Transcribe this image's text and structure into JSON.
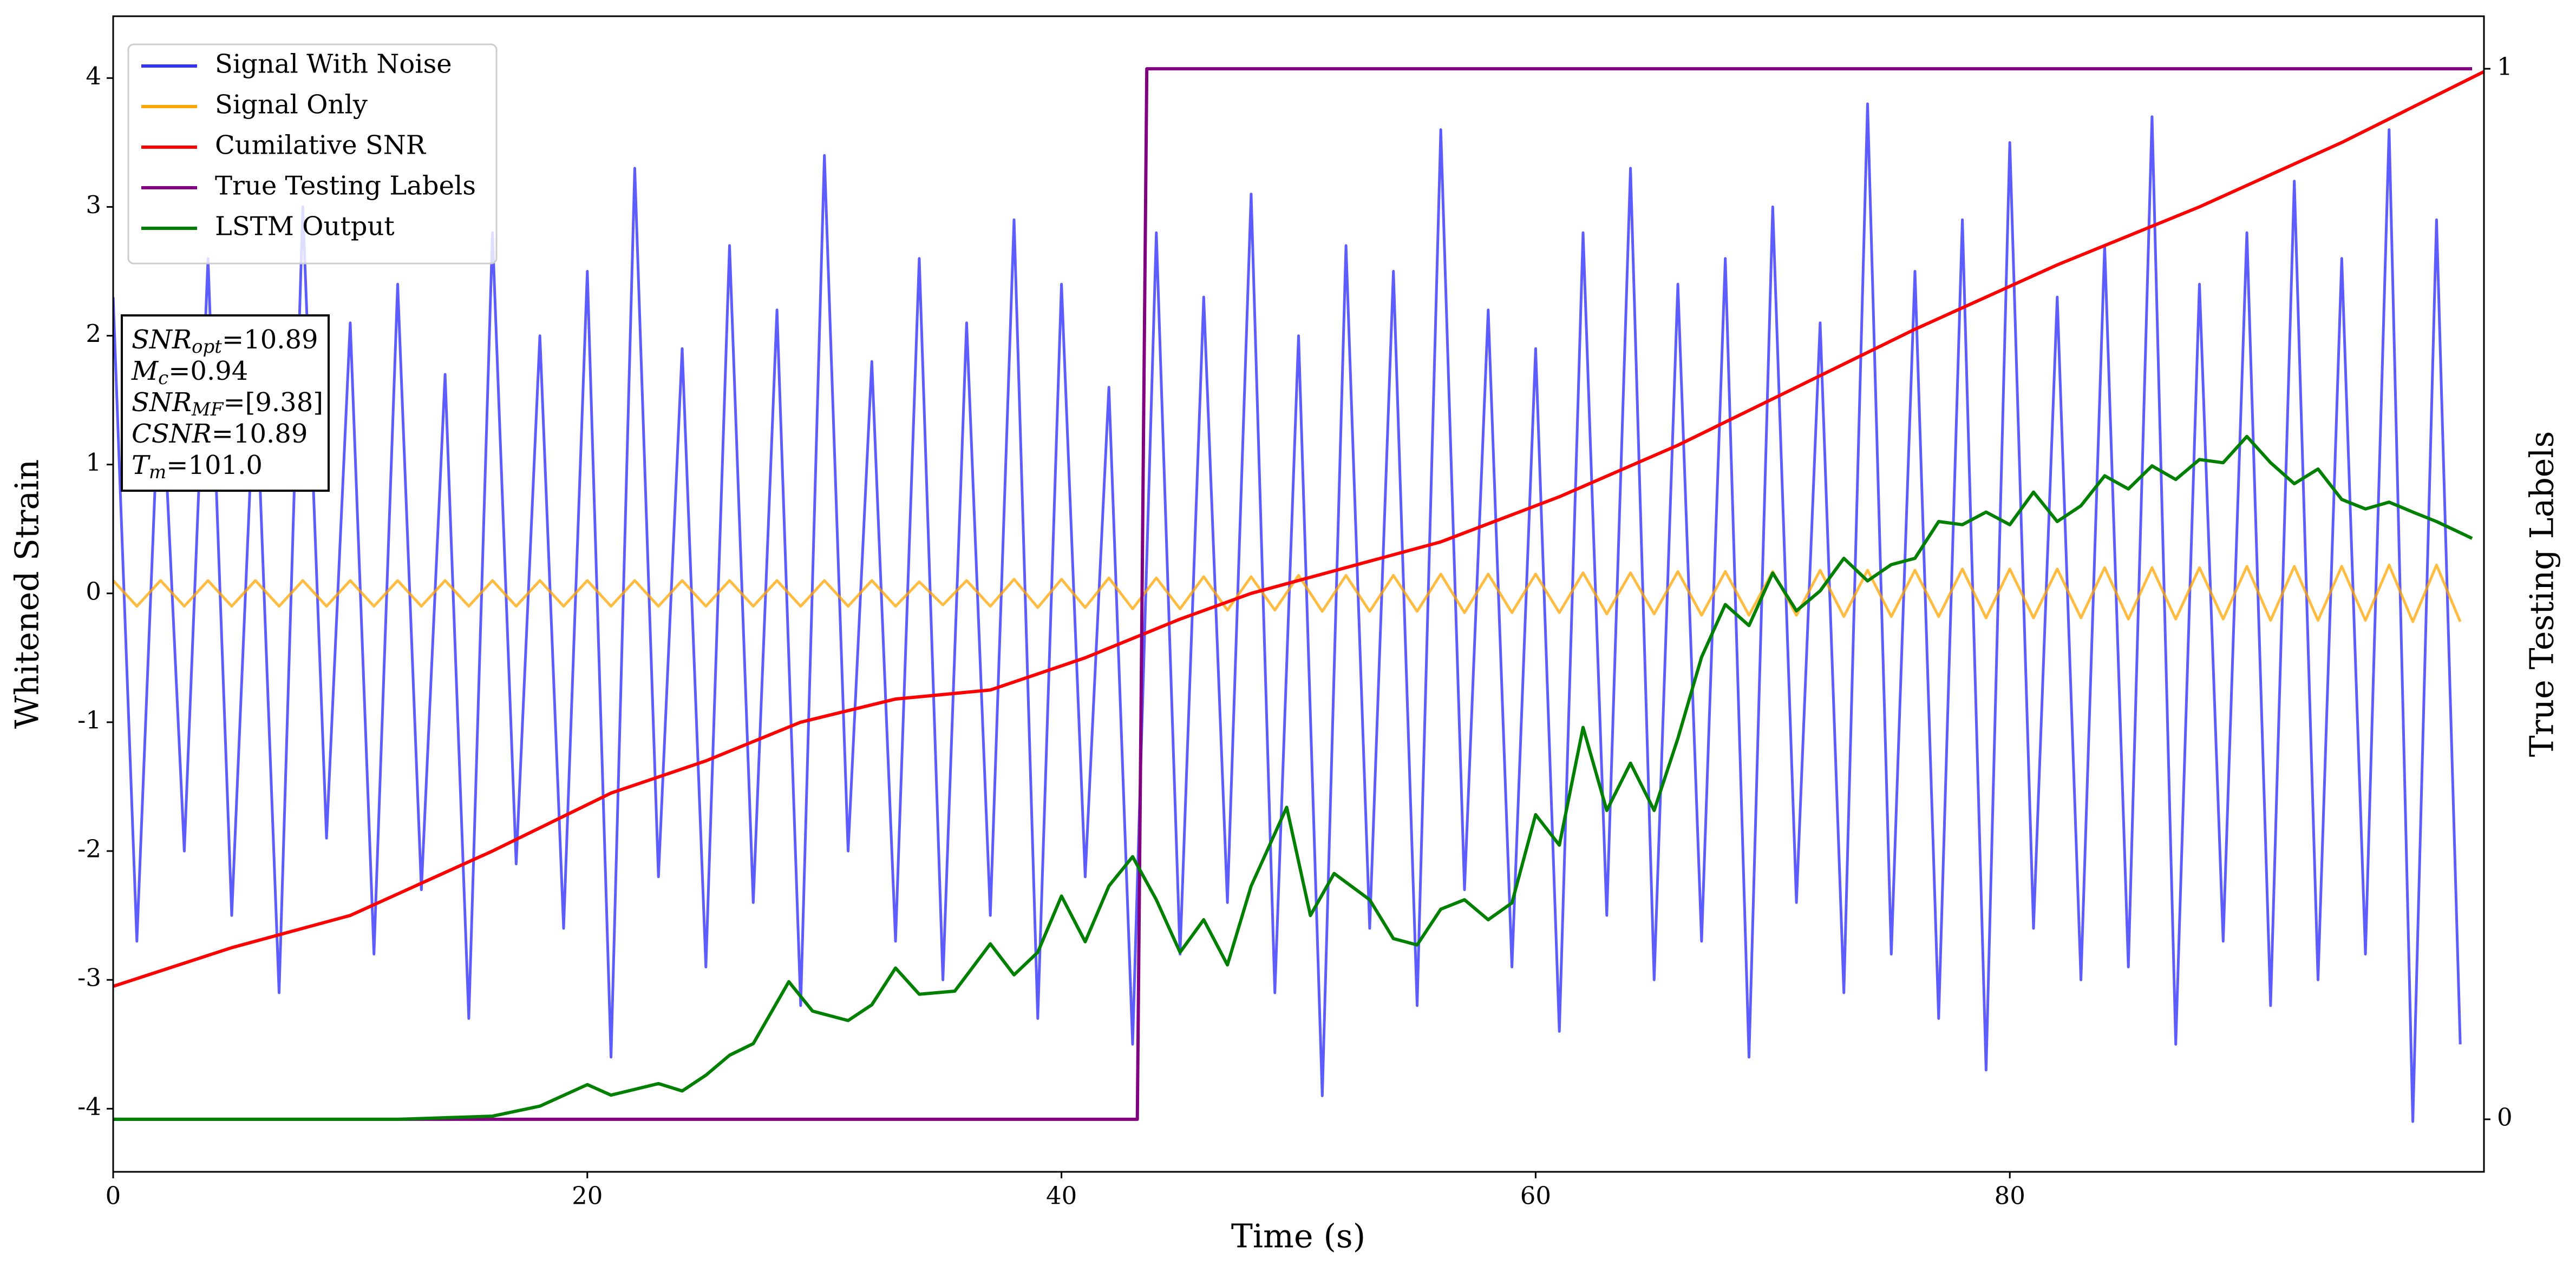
{
  "chart_data": {
    "type": "line",
    "xlabel": "Time (s)",
    "ylabel": "Whitened Strain",
    "y2label": "True Testing Labels",
    "xlim": [
      0,
      100
    ],
    "xticks": [
      0,
      20,
      40,
      60,
      80
    ],
    "ylim": [
      -4.49,
      4.48
    ],
    "yticks": [
      -4,
      -3,
      -2,
      -1,
      0,
      1,
      2,
      3,
      4
    ],
    "y2lim": [
      -0.05,
      1.05
    ],
    "y2ticks": [
      0,
      1
    ],
    "legend": "upper left",
    "x": [
      0,
      1,
      2,
      3,
      4,
      5,
      6,
      7,
      8,
      9,
      10,
      11,
      12,
      13,
      14,
      15,
      16,
      17,
      18,
      19,
      20,
      21,
      22,
      23,
      24,
      25,
      26,
      27,
      28,
      29,
      30,
      31,
      32,
      33,
      34,
      35,
      36,
      37,
      38,
      39,
      40,
      41,
      42,
      43,
      44,
      45,
      46,
      47,
      48,
      49,
      50,
      51,
      52,
      53,
      54,
      55,
      56,
      57,
      58,
      59,
      60,
      61,
      62,
      63,
      64,
      65,
      66,
      67,
      68,
      69,
      70,
      71,
      72,
      73,
      74,
      75,
      76,
      77,
      78,
      79,
      80,
      81,
      82,
      83,
      84,
      85,
      86,
      87,
      88,
      89,
      90,
      91,
      92,
      93,
      94,
      95,
      96,
      97,
      98,
      99
    ],
    "series": [
      {
        "name": "Signal With Noise",
        "color": "#3333ff",
        "values": [
          2.3,
          -2.7,
          1.9,
          -2.0,
          2.6,
          -2.5,
          1.8,
          -3.1,
          3.0,
          -1.9,
          2.1,
          -2.8,
          2.4,
          -2.3,
          1.7,
          -3.3,
          2.8,
          -2.1,
          2.0,
          -2.6,
          2.5,
          -3.6,
          3.3,
          -2.2,
          1.9,
          -2.9,
          2.7,
          -2.4,
          2.2,
          -3.2,
          3.4,
          -2.0,
          1.8,
          -2.7,
          2.6,
          -3.0,
          2.1,
          -2.5,
          2.9,
          -3.3,
          2.4,
          -2.2,
          1.6,
          -3.5,
          2.8,
          -2.8,
          2.3,
          -2.4,
          3.1,
          -3.1,
          2.0,
          -3.9,
          2.7,
          -2.6,
          2.5,
          -3.2,
          3.6,
          -2.3,
          2.2,
          -2.9,
          1.9,
          -3.4,
          2.8,
          -2.5,
          3.3,
          -3.0,
          2.4,
          -2.7,
          2.6,
          -3.6,
          3.0,
          -2.4,
          2.1,
          -3.1,
          3.8,
          -2.8,
          2.5,
          -3.3,
          2.9,
          -3.7,
          3.5,
          -2.6,
          2.3,
          -3.0,
          2.7,
          -2.9,
          3.7,
          -3.5,
          2.4,
          -2.7,
          2.8,
          -3.2,
          3.2,
          -3.0,
          2.6,
          -2.8,
          3.6,
          -4.1,
          2.9,
          -3.5
        ]
      },
      {
        "name": "Signal Only",
        "color": "#ffa500",
        "values": [
          0.1,
          -0.1,
          0.1,
          -0.1,
          0.1,
          -0.1,
          0.1,
          -0.1,
          0.1,
          -0.1,
          0.1,
          -0.1,
          0.1,
          -0.1,
          0.1,
          -0.1,
          0.1,
          -0.1,
          0.1,
          -0.1,
          0.1,
          -0.1,
          0.1,
          -0.1,
          0.1,
          -0.1,
          0.1,
          -0.1,
          0.1,
          -0.1,
          0.1,
          -0.1,
          0.1,
          -0.1,
          0.09,
          -0.09,
          0.1,
          -0.1,
          0.11,
          -0.11,
          0.11,
          -0.11,
          0.12,
          -0.12,
          0.12,
          -0.12,
          0.13,
          -0.13,
          0.13,
          -0.13,
          0.14,
          -0.14,
          0.14,
          -0.14,
          0.14,
          -0.14,
          0.15,
          -0.15,
          0.15,
          -0.15,
          0.15,
          -0.15,
          0.16,
          -0.16,
          0.16,
          -0.16,
          0.17,
          -0.17,
          0.17,
          -0.17,
          0.17,
          -0.17,
          0.18,
          -0.18,
          0.18,
          -0.18,
          0.18,
          -0.18,
          0.19,
          -0.19,
          0.19,
          -0.19,
          0.19,
          -0.19,
          0.2,
          -0.2,
          0.2,
          -0.2,
          0.2,
          -0.2,
          0.21,
          -0.21,
          0.21,
          -0.21,
          0.21,
          -0.21,
          0.22,
          -0.22,
          0.22,
          -0.22
        ]
      },
      {
        "name": "Cumilative SNR",
        "color": "#ff0000",
        "x": [
          0,
          5,
          10,
          16,
          21,
          25,
          29,
          33,
          37,
          41,
          45,
          48,
          52,
          56,
          61,
          66,
          71,
          76,
          82,
          88,
          94,
          100
        ],
        "values": [
          -3.05,
          -2.75,
          -2.5,
          -2.0,
          -1.55,
          -1.3,
          -1.0,
          -0.82,
          -0.75,
          -0.5,
          -0.2,
          0,
          0.2,
          0.4,
          0.75,
          1.15,
          1.6,
          2.05,
          2.55,
          3.0,
          3.5,
          4.05
        ]
      },
      {
        "name": "True Testing Labels",
        "color": "#800080",
        "axis": "y2",
        "x": [
          0,
          43.2,
          43.6,
          99.5
        ],
        "values": [
          0,
          0,
          1,
          1
        ]
      },
      {
        "name": "LSTM Output",
        "color": "#008000",
        "axis": "y2",
        "x": [
          0,
          12,
          16,
          18,
          20,
          21,
          23,
          24,
          25,
          26,
          27,
          28.5,
          29.5,
          31,
          32,
          33,
          34,
          35.5,
          37,
          38,
          39,
          40,
          41,
          42,
          43,
          44,
          45,
          46,
          47,
          48,
          49.5,
          50.5,
          51.5,
          53,
          54,
          55,
          56,
          57,
          58,
          59,
          60,
          61,
          62,
          63,
          64,
          65,
          66,
          67,
          68,
          69,
          70,
          71,
          72,
          73,
          74,
          75,
          76,
          77,
          78,
          79,
          80,
          81,
          82,
          83,
          84,
          85,
          86,
          87,
          88,
          89,
          90,
          91,
          92,
          93,
          94,
          95,
          96,
          97,
          98,
          99.5
        ],
        "values": [
          0,
          0,
          0.003,
          0.0125,
          0.033,
          0.023,
          0.034,
          0.027,
          0.042,
          0.061,
          0.072,
          0.131,
          0.103,
          0.094,
          0.109,
          0.144,
          0.119,
          0.122,
          0.167,
          0.1375,
          0.159,
          0.2125,
          0.169,
          0.222,
          0.25,
          0.209,
          0.159,
          0.19,
          0.147,
          0.222,
          0.297,
          0.194,
          0.234,
          0.209,
          0.172,
          0.166,
          0.2,
          0.209,
          0.19,
          0.206,
          0.29,
          0.261,
          0.373,
          0.294,
          0.339,
          0.294,
          0.3625,
          0.44,
          0.49,
          0.47,
          0.52,
          0.484,
          0.503,
          0.534,
          0.5125,
          0.528,
          0.534,
          0.569,
          0.566,
          0.578,
          0.566,
          0.597,
          0.569,
          0.584,
          0.6125,
          0.6,
          0.622,
          0.609,
          0.628,
          0.625,
          0.65,
          0.625,
          0.605,
          0.619,
          0.59,
          0.581,
          0.5875,
          0.578,
          0.569,
          0.553
        ]
      }
    ],
    "annotations": [
      {
        "name": "SNR",
        "sub": "opt",
        "value": "=10.89"
      },
      {
        "name": "M",
        "sub": "c",
        "value": "=0.94"
      },
      {
        "name": "SNR",
        "sub": "MF",
        "value": "=[9.38]"
      },
      {
        "name": "CSNR",
        "value": "=10.89"
      },
      {
        "name": "T",
        "sub": "m",
        "value": "=101.0"
      }
    ]
  }
}
